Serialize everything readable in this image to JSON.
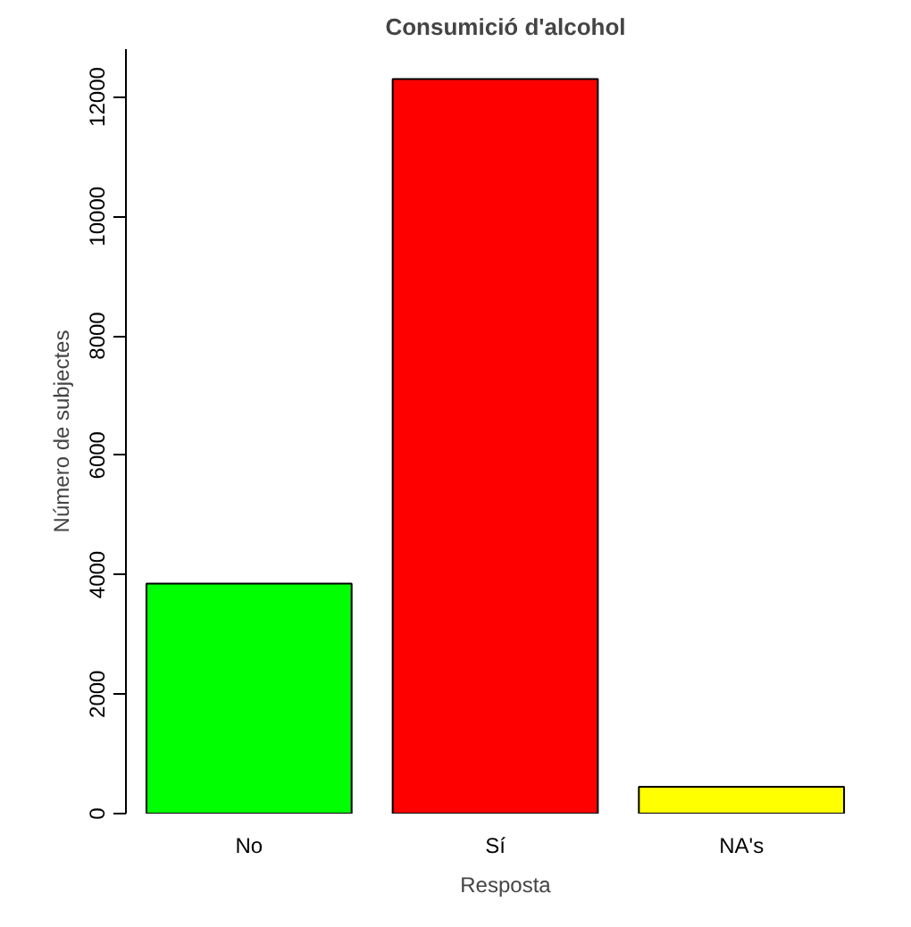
{
  "chart_data": {
    "type": "bar",
    "title": "Consumició d'alcohol",
    "xlabel": "Resposta",
    "ylabel": "Número de subjectes",
    "categories": [
      "No",
      "Sí",
      "NA's"
    ],
    "values": [
      3850,
      12300,
      450
    ],
    "colors": [
      "#00ff00",
      "#ff0000",
      "#ffff00"
    ],
    "ylim": [
      0,
      12800
    ],
    "yticks": [
      0,
      2000,
      4000,
      6000,
      8000,
      10000,
      12000
    ],
    "grid": false
  }
}
